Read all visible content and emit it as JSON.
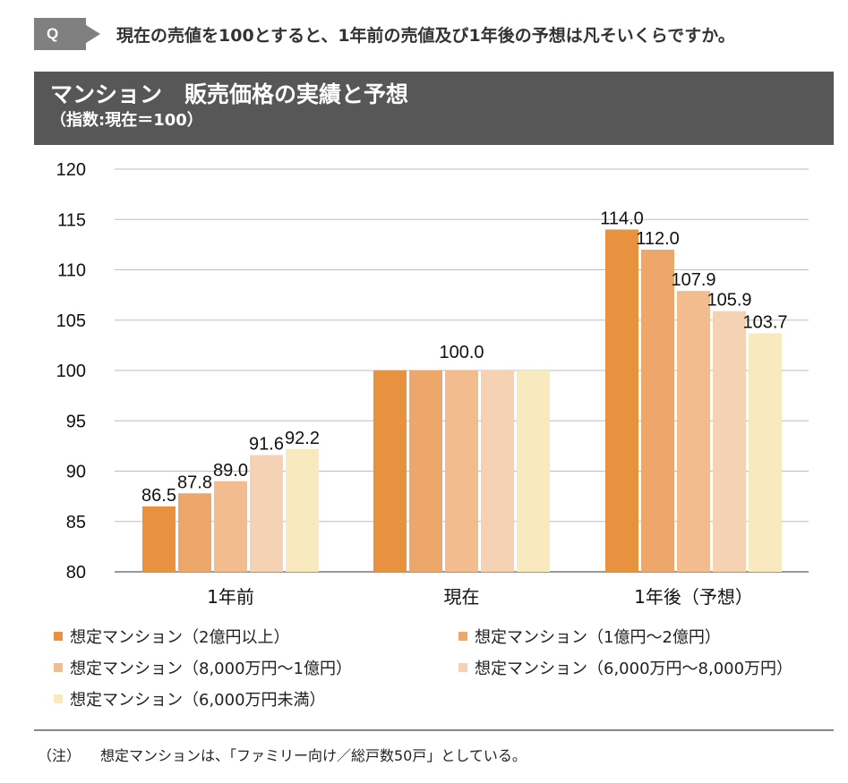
{
  "question": {
    "badge": "Q",
    "text": "現在の売値を100とすると、1年前の売値及び1年後の予想は凡そいくらですか。"
  },
  "header": {
    "title": "マンション　販売価格の実績と予想",
    "subtitle": "（指数:現在＝100）"
  },
  "chart_data": {
    "type": "bar",
    "categories": [
      "1年前",
      "現在",
      "1年後（予想）"
    ],
    "ylim": [
      80,
      120
    ],
    "yticks": [
      80,
      85,
      90,
      95,
      100,
      105,
      110,
      115,
      120
    ],
    "grid": true,
    "legend_position": "bottom",
    "series": [
      {
        "name": "想定マンション（2億円以上）",
        "color": "#E8913F",
        "values": [
          86.5,
          100.0,
          114.0
        ]
      },
      {
        "name": "想定マンション（1億円〜2億円）",
        "color": "#EEA76A",
        "values": [
          87.8,
          100.0,
          112.0
        ]
      },
      {
        "name": "想定マンション（8,000万円〜1億円）",
        "color": "#F2BC8F",
        "values": [
          89.0,
          100.0,
          107.9
        ]
      },
      {
        "name": "想定マンション（6,000万円〜8,000万円）",
        "color": "#F6D2B4",
        "values": [
          91.6,
          100.0,
          105.9
        ]
      },
      {
        "name": "想定マンション（6,000万円未満）",
        "color": "#F9E9BE",
        "values": [
          92.2,
          100.0,
          103.7
        ]
      }
    ],
    "data_labels": [
      [
        "86.5",
        "87.8",
        "89.0",
        "91.6",
        "92.2"
      ],
      [
        "100.0"
      ],
      [
        "114.0",
        "112.0",
        "107.9",
        "105.9",
        "103.7"
      ]
    ]
  },
  "footnote": {
    "tag": "（注）",
    "text": "想定マンションは、「ファミリー向け／総戸数50戸」としている。"
  }
}
